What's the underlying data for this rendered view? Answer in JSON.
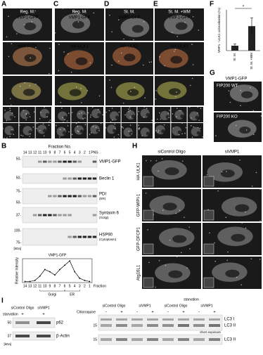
{
  "panel_letters": [
    "A",
    "B",
    "C",
    "D",
    "E",
    "F",
    "G",
    "H",
    "I"
  ],
  "panel_a": {
    "condition": "Reg. M.",
    "rows": [
      "VMP1-GFP",
      "mRFP-ER"
    ]
  },
  "panel_c": {
    "condition": "Reg. M.",
    "rows": [
      "VMP1-GFP",
      "HA-ULK1"
    ]
  },
  "panel_d": {
    "condition": "St. M.",
    "rows": [
      "VMP1-GFP",
      "HA-ULK1"
    ]
  },
  "panel_e": {
    "condition": "St. M. +WM",
    "rows": [
      "VMP1-GFP",
      "HA-ULK1"
    ]
  },
  "panel_g": {
    "title": "VMP1-GFP",
    "rows": [
      "FIP200 WT",
      "FIP200 KO"
    ]
  },
  "panel_b": {
    "header": "Fraction No.",
    "fractions": [
      "14",
      "13",
      "12",
      "11",
      "10",
      "9",
      "8",
      "7",
      "6",
      "5",
      "4",
      "3",
      "2",
      "1",
      "PNS"
    ],
    "blots": [
      {
        "label": "VMP1-GFP"
      },
      {
        "label": "Beclin 1"
      },
      {
        "label": "PDI",
        "sub": "(ER)"
      },
      {
        "label": "Syntaxin 6",
        "sub": "(Golgi)"
      },
      {
        "label": "HSP90",
        "sub": "(Cytoplasm)"
      }
    ],
    "mw": [
      "50-",
      "50-",
      "75-",
      "50-",
      "37-",
      "100-",
      "75-"
    ],
    "unit": "[kDa]"
  },
  "panel_h": {
    "columns": [
      "siControl Oligo",
      "siVMP1"
    ],
    "rows": [
      "HA-ULK1",
      "GFP-WIPI-1",
      "GFP-DFCP1",
      "Atg16L1"
    ]
  },
  "panel_i_left": {
    "lanes": [
      "siControl Oligo",
      "siVMP1"
    ],
    "treatment": "starvation",
    "signs": [
      "+",
      "+"
    ],
    "blots": [
      "p62",
      "β-Actin"
    ],
    "mw": [
      "50",
      "37"
    ],
    "unit": "[kDa]"
  },
  "panel_i_right": {
    "treatment1": "Chloroquine",
    "signs": [
      "-",
      "+",
      "-",
      "+",
      "-",
      "+",
      "-",
      "+"
    ],
    "treatment2": "starvation",
    "lanes": [
      "siControl Oligo",
      "siVMP1",
      "siControl Oligo",
      "siVMP1"
    ],
    "blots": [
      "LC3 I",
      "LC3 II",
      "short exposure",
      "LC3 II"
    ],
    "mw": [
      "15",
      "15"
    ]
  },
  "chart_data": [
    {
      "type": "bar",
      "y_label": "VMP1 - ULK1 colocalization (%)",
      "categories": [
        "St. M.",
        "St. M. +WM"
      ],
      "values": [
        3,
        15
      ],
      "errors": [
        1,
        5
      ],
      "color": "#222222",
      "annotation": "*",
      "ylim": [
        0,
        25
      ]
    },
    {
      "type": "line",
      "title": "VMP1-GFP",
      "y_label": "Relative Intensity",
      "x_label": "Fraction",
      "categories": [
        "14",
        "13",
        "12",
        "11",
        "10",
        "9",
        "8",
        "7",
        "6",
        "5",
        "4",
        "3",
        "2",
        "1"
      ],
      "values": [
        0.05,
        0.05,
        0.1,
        0.3,
        0.6,
        0.5,
        0.35,
        0.6,
        0.8,
        1.0,
        0.5,
        0.2,
        0.1,
        0.05
      ],
      "color": "#000000",
      "ylim": [
        0,
        1.1
      ],
      "groups": [
        "Golgi",
        "ER"
      ]
    }
  ]
}
